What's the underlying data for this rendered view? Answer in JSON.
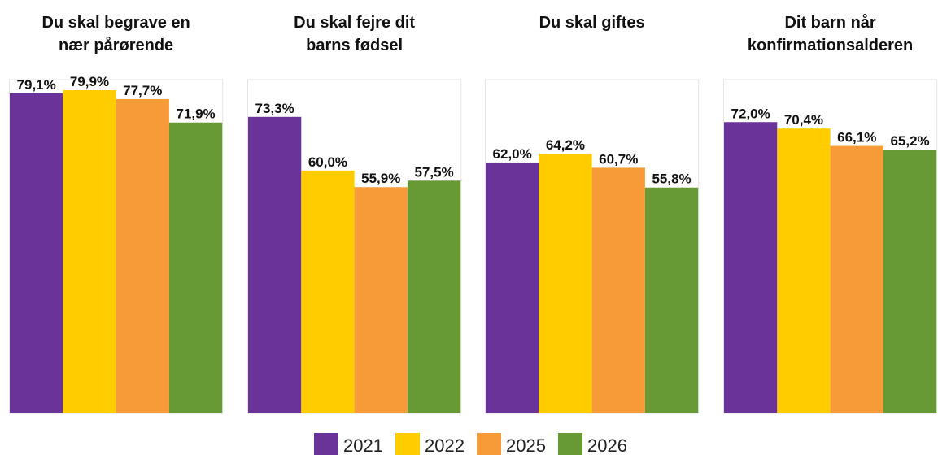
{
  "chart_data": {
    "type": "bar",
    "categories": [
      "Du skal begrave en\nnær pårørende",
      "Du skal fejre dit\nbarns fødsel",
      "Du skal giftes",
      "Dit barn når\nkonfirmationsalderen"
    ],
    "series": [
      {
        "name": "2021",
        "color": "#6a339a",
        "values": [
          79.1,
          73.3,
          62.0,
          72.0
        ],
        "value_labels": [
          "79,1%",
          "73,3%",
          "62,0%",
          "72,0%"
        ]
      },
      {
        "name": "2022",
        "color": "#ffcc00",
        "values": [
          79.9,
          60.0,
          64.2,
          70.4
        ],
        "value_labels": [
          "79,9%",
          "60,0%",
          "64,2%",
          "70,4%"
        ]
      },
      {
        "name": "2025",
        "color": "#f79b38",
        "values": [
          77.7,
          55.9,
          60.7,
          66.1
        ],
        "value_labels": [
          "77,7%",
          "55,9%",
          "60,7%",
          "66,1%"
        ]
      },
      {
        "name": "2026",
        "color": "#679a35",
        "values": [
          71.9,
          57.5,
          55.8,
          65.2
        ],
        "value_labels": [
          "71,9%",
          "57,5%",
          "55,8%",
          "65,2%"
        ]
      }
    ]
  }
}
